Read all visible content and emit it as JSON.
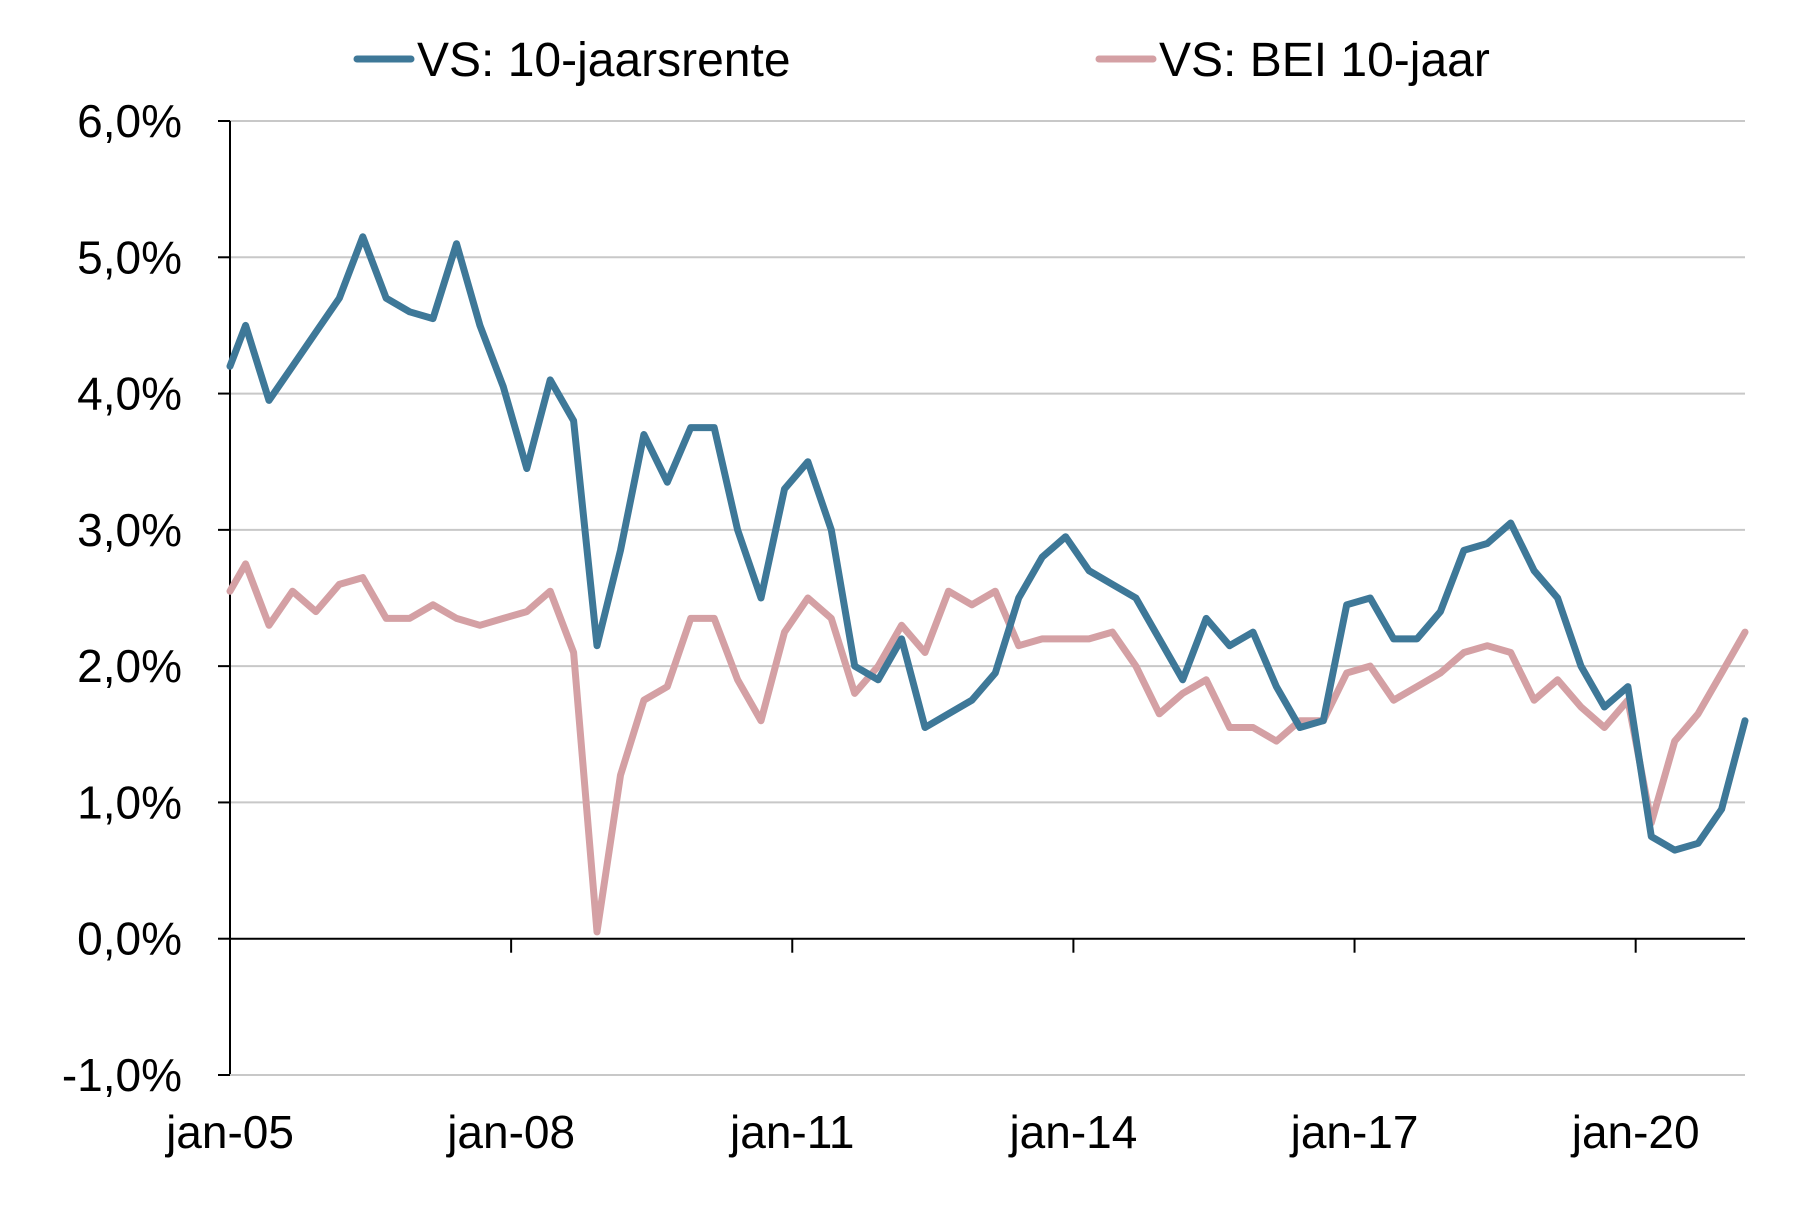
{
  "chart_data": {
    "type": "line",
    "title": "",
    "xlabel": "",
    "ylabel": "",
    "x_range": [
      "2005-01",
      "2021-03"
    ],
    "ylim": [
      -1.0,
      6.0
    ],
    "y_ticks": [
      -1.0,
      0.0,
      1.0,
      2.0,
      3.0,
      4.0,
      5.0,
      6.0
    ],
    "y_tick_labels": [
      "-1,0%",
      "0,0%",
      "1,0%",
      "2,0%",
      "3,0%",
      "4,0%",
      "5,0%",
      "6,0%"
    ],
    "x_ticks": [
      "2005-01",
      "2008-01",
      "2011-01",
      "2014-01",
      "2017-01",
      "2020-01"
    ],
    "x_tick_labels": [
      "jan-05",
      "jan-08",
      "jan-11",
      "jan-14",
      "jan-17",
      "jan-20"
    ],
    "grid": "horizontal",
    "legend_position": "top",
    "series": [
      {
        "name": "VS: 10-jaarsrente",
        "color": "#3e7898",
        "points": [
          [
            "2005-01",
            4.2
          ],
          [
            "2005-03",
            4.5
          ],
          [
            "2005-06",
            3.95
          ],
          [
            "2005-09",
            4.2
          ],
          [
            "2005-12",
            4.45
          ],
          [
            "2006-03",
            4.7
          ],
          [
            "2006-06",
            5.15
          ],
          [
            "2006-09",
            4.7
          ],
          [
            "2006-12",
            4.6
          ],
          [
            "2007-03",
            4.55
          ],
          [
            "2007-06",
            5.1
          ],
          [
            "2007-09",
            4.5
          ],
          [
            "2007-12",
            4.05
          ],
          [
            "2008-03",
            3.45
          ],
          [
            "2008-06",
            4.1
          ],
          [
            "2008-09",
            3.8
          ],
          [
            "2008-12",
            2.15
          ],
          [
            "2009-03",
            2.85
          ],
          [
            "2009-06",
            3.7
          ],
          [
            "2009-09",
            3.35
          ],
          [
            "2009-12",
            3.75
          ],
          [
            "2010-03",
            3.75
          ],
          [
            "2010-06",
            3.0
          ],
          [
            "2010-09",
            2.5
          ],
          [
            "2010-12",
            3.3
          ],
          [
            "2011-03",
            3.5
          ],
          [
            "2011-06",
            3.0
          ],
          [
            "2011-09",
            2.0
          ],
          [
            "2011-12",
            1.9
          ],
          [
            "2012-03",
            2.2
          ],
          [
            "2012-06",
            1.55
          ],
          [
            "2012-09",
            1.65
          ],
          [
            "2012-12",
            1.75
          ],
          [
            "2013-03",
            1.95
          ],
          [
            "2013-06",
            2.5
          ],
          [
            "2013-09",
            2.8
          ],
          [
            "2013-12",
            2.95
          ],
          [
            "2014-03",
            2.7
          ],
          [
            "2014-06",
            2.6
          ],
          [
            "2014-09",
            2.5
          ],
          [
            "2014-12",
            2.2
          ],
          [
            "2015-03",
            1.9
          ],
          [
            "2015-06",
            2.35
          ],
          [
            "2015-09",
            2.15
          ],
          [
            "2015-12",
            2.25
          ],
          [
            "2016-03",
            1.85
          ],
          [
            "2016-06",
            1.55
          ],
          [
            "2016-09",
            1.6
          ],
          [
            "2016-12",
            2.45
          ],
          [
            "2017-03",
            2.5
          ],
          [
            "2017-06",
            2.2
          ],
          [
            "2017-09",
            2.2
          ],
          [
            "2017-12",
            2.4
          ],
          [
            "2018-03",
            2.85
          ],
          [
            "2018-06",
            2.9
          ],
          [
            "2018-09",
            3.05
          ],
          [
            "2018-12",
            2.7
          ],
          [
            "2019-03",
            2.5
          ],
          [
            "2019-06",
            2.0
          ],
          [
            "2019-09",
            1.7
          ],
          [
            "2019-12",
            1.85
          ],
          [
            "2020-03",
            0.75
          ],
          [
            "2020-06",
            0.65
          ],
          [
            "2020-09",
            0.7
          ],
          [
            "2020-12",
            0.95
          ],
          [
            "2021-03",
            1.6
          ]
        ]
      },
      {
        "name": "VS: BEI 10-jaar",
        "color": "#d4a0a4",
        "points": [
          [
            "2005-01",
            2.55
          ],
          [
            "2005-03",
            2.75
          ],
          [
            "2005-06",
            2.3
          ],
          [
            "2005-09",
            2.55
          ],
          [
            "2005-12",
            2.4
          ],
          [
            "2006-03",
            2.6
          ],
          [
            "2006-06",
            2.65
          ],
          [
            "2006-09",
            2.35
          ],
          [
            "2006-12",
            2.35
          ],
          [
            "2007-03",
            2.45
          ],
          [
            "2007-06",
            2.35
          ],
          [
            "2007-09",
            2.3
          ],
          [
            "2007-12",
            2.35
          ],
          [
            "2008-03",
            2.4
          ],
          [
            "2008-06",
            2.55
          ],
          [
            "2008-09",
            2.1
          ],
          [
            "2008-12",
            0.05
          ],
          [
            "2009-03",
            1.2
          ],
          [
            "2009-06",
            1.75
          ],
          [
            "2009-09",
            1.85
          ],
          [
            "2009-12",
            2.35
          ],
          [
            "2010-03",
            2.35
          ],
          [
            "2010-06",
            1.9
          ],
          [
            "2010-09",
            1.6
          ],
          [
            "2010-12",
            2.25
          ],
          [
            "2011-03",
            2.5
          ],
          [
            "2011-06",
            2.35
          ],
          [
            "2011-09",
            1.8
          ],
          [
            "2011-12",
            2.0
          ],
          [
            "2012-03",
            2.3
          ],
          [
            "2012-06",
            2.1
          ],
          [
            "2012-09",
            2.55
          ],
          [
            "2012-12",
            2.45
          ],
          [
            "2013-03",
            2.55
          ],
          [
            "2013-06",
            2.15
          ],
          [
            "2013-09",
            2.2
          ],
          [
            "2013-12",
            2.2
          ],
          [
            "2014-03",
            2.2
          ],
          [
            "2014-06",
            2.25
          ],
          [
            "2014-09",
            2.0
          ],
          [
            "2014-12",
            1.65
          ],
          [
            "2015-03",
            1.8
          ],
          [
            "2015-06",
            1.9
          ],
          [
            "2015-09",
            1.55
          ],
          [
            "2015-12",
            1.55
          ],
          [
            "2016-03",
            1.45
          ],
          [
            "2016-06",
            1.6
          ],
          [
            "2016-09",
            1.6
          ],
          [
            "2016-12",
            1.95
          ],
          [
            "2017-03",
            2.0
          ],
          [
            "2017-06",
            1.75
          ],
          [
            "2017-09",
            1.85
          ],
          [
            "2017-12",
            1.95
          ],
          [
            "2018-03",
            2.1
          ],
          [
            "2018-06",
            2.15
          ],
          [
            "2018-09",
            2.1
          ],
          [
            "2018-12",
            1.75
          ],
          [
            "2019-03",
            1.9
          ],
          [
            "2019-06",
            1.7
          ],
          [
            "2019-09",
            1.55
          ],
          [
            "2019-12",
            1.75
          ],
          [
            "2020-03",
            0.85
          ],
          [
            "2020-06",
            1.45
          ],
          [
            "2020-09",
            1.65
          ],
          [
            "2020-12",
            1.95
          ],
          [
            "2021-03",
            2.25
          ]
        ]
      }
    ]
  }
}
